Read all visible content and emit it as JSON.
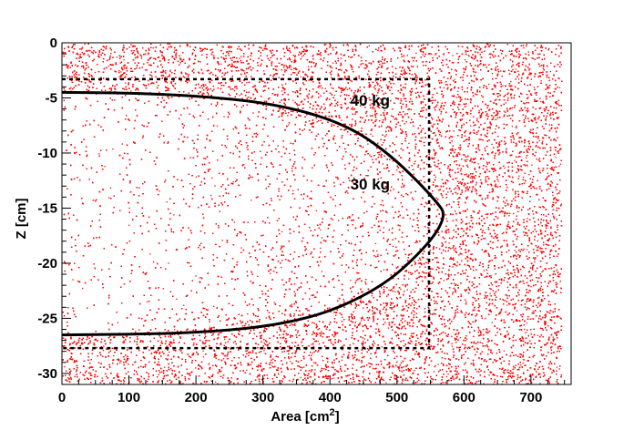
{
  "chart_data": {
    "type": "scatter",
    "title": "",
    "xlabel_main": "Area [cm",
    "xlabel_sup": "2",
    "xlabel_end": "]",
    "ylabel": "Z [cm]",
    "xlim": [
      0,
      760
    ],
    "ylim": [
      -31,
      0
    ],
    "x_ticks": [
      0,
      100,
      200,
      300,
      400,
      500,
      600,
      700
    ],
    "x_tick_labels": [
      "0",
      "100",
      "200",
      "300",
      "400",
      "500",
      "600",
      "700"
    ],
    "y_ticks": [
      0,
      -5,
      -10,
      -15,
      -20,
      -25,
      -30
    ],
    "y_tick_labels": [
      "0",
      "-5",
      "-10",
      "-15",
      "-20",
      "-25",
      "-30"
    ],
    "grid": false,
    "point_color": "#ff0000",
    "point_density_description_values": {
      "outer_region_density": 1.0,
      "inner_region_density": 0.18,
      "inner_edge_density": 0.55
    },
    "scatter_extent": {
      "x": [
        0,
        745
      ],
      "y": [
        -31,
        0
      ]
    },
    "curve_30kg": {
      "label": "30 kg",
      "label_position": [
        460,
        -12.8
      ],
      "color": "#000000",
      "points": [
        [
          0,
          -4.5
        ],
        [
          100,
          -4.55
        ],
        [
          200,
          -4.8
        ],
        [
          300,
          -5.4
        ],
        [
          380,
          -6.5
        ],
        [
          440,
          -8.0
        ],
        [
          490,
          -10.2
        ],
        [
          530,
          -12.5
        ],
        [
          560,
          -14.5
        ],
        [
          572,
          -15.5
        ],
        [
          560,
          -17.2
        ],
        [
          530,
          -19.3
        ],
        [
          490,
          -21.5
        ],
        [
          440,
          -23.3
        ],
        [
          380,
          -24.8
        ],
        [
          300,
          -25.8
        ],
        [
          200,
          -26.3
        ],
        [
          100,
          -26.45
        ],
        [
          0,
          -26.5
        ]
      ]
    },
    "box_40kg": {
      "label": "40 kg",
      "label_position": [
        460,
        -5.2
      ],
      "color": "#000000",
      "x_range": [
        0,
        548
      ],
      "z_range": [
        -27.7,
        -3.3
      ]
    }
  }
}
